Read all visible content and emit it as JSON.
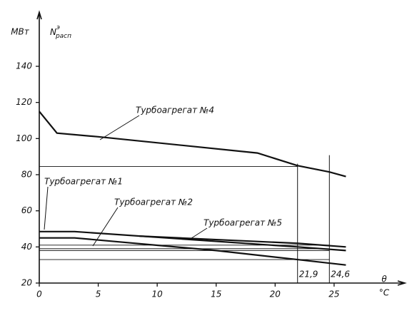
{
  "chart_data": {
    "type": "line",
    "y_unit": "МВт",
    "y_symbol": "N",
    "y_symbol_sup": "э",
    "y_symbol_sub": "расп",
    "x_label": "θ",
    "x_unit": "°C",
    "xlim": [
      0,
      31
    ],
    "ylim": [
      20,
      170
    ],
    "xticks": [
      0,
      5,
      10,
      15,
      20,
      25
    ],
    "yticks": [
      20,
      40,
      60,
      80,
      100,
      120,
      140
    ],
    "color": "#111111",
    "series": [
      {
        "name": "Турбоагрегат №4",
        "x": [
          0,
          1.5,
          5,
          18.5,
          21.9,
          24.6,
          26
        ],
        "values": [
          115,
          103,
          101,
          92,
          85,
          81.5,
          79
        ]
      },
      {
        "name": "Турбоагрегат №1",
        "x": [
          0,
          3,
          21.9,
          26
        ],
        "values": [
          48.5,
          48.5,
          40,
          38
        ]
      },
      {
        "name": "Турбоагрегат №2",
        "x": [
          0,
          3,
          15,
          21.9,
          26
        ],
        "values": [
          45,
          45,
          38,
          33,
          30
        ]
      },
      {
        "name": "Турбоагрегат №5",
        "x": [
          8.5,
          21.9,
          26
        ],
        "values": [
          46,
          42,
          40
        ]
      }
    ],
    "hlines": [
      84.5,
      41,
      39,
      38,
      33
    ],
    "vlines": [
      {
        "value": 21.9,
        "label": "21,9"
      },
      {
        "value": 24.6,
        "label": "24,6"
      }
    ]
  }
}
